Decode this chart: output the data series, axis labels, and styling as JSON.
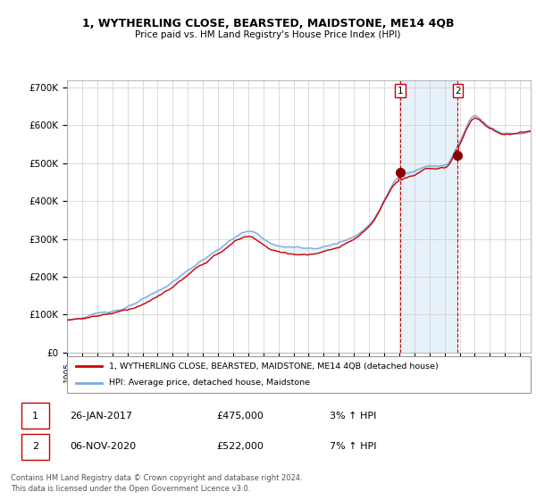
{
  "title_line1": "1, WYTHERLING CLOSE, BEARSTED, MAIDSTONE, ME14 4QB",
  "title_line2": "Price paid vs. HM Land Registry's House Price Index (HPI)",
  "background_color": "#ffffff",
  "plot_bg_color": "#ffffff",
  "grid_color": "#cccccc",
  "sale1_price": 475000,
  "sale2_price": 522000,
  "hpi_color": "#7aaadd",
  "price_color": "#cc0000",
  "vline_color": "#cc0000",
  "shade_color": "#d8e8f5",
  "legend_label1": "1, WYTHERLING CLOSE, BEARSTED, MAIDSTONE, ME14 4QB (detached house)",
  "legend_label2": "HPI: Average price, detached house, Maidstone",
  "footer1": "Contains HM Land Registry data © Crown copyright and database right 2024.",
  "footer2": "This data is licensed under the Open Government Licence v3.0.",
  "table_row1": [
    "1",
    "26-JAN-2017",
    "£475,000",
    "3% ↑ HPI"
  ],
  "table_row2": [
    "2",
    "06-NOV-2020",
    "£522,000",
    "7% ↑ HPI"
  ],
  "ylim": [
    0,
    720000
  ],
  "yticks": [
    0,
    100000,
    200000,
    300000,
    400000,
    500000,
    600000,
    700000
  ],
  "yticklabels": [
    "£0",
    "£100K",
    "£200K",
    "£300K",
    "£400K",
    "£500K",
    "£600K",
    "£700K"
  ],
  "xstart": 1995,
  "xend": 2026
}
